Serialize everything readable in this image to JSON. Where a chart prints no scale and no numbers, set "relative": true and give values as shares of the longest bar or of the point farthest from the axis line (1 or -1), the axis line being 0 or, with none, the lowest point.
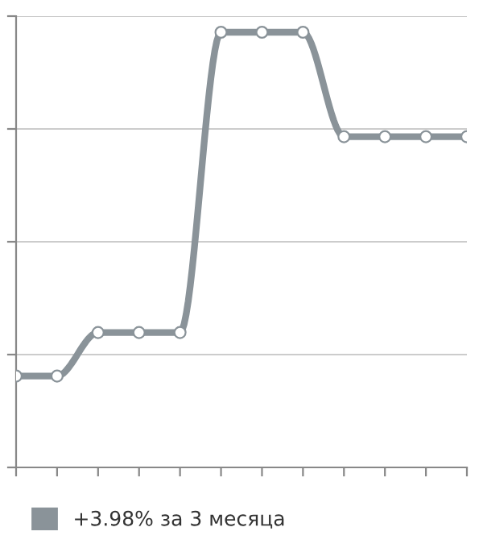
{
  "chart_data": {
    "type": "line",
    "relative": true,
    "categories": [
      null,
      null,
      null,
      null,
      null,
      null,
      null,
      null,
      null,
      null,
      null,
      null
    ],
    "series": [
      {
        "name": "+3.98% за 3 месяца",
        "color": "#8a9399",
        "values": [
          0.21,
          0.21,
          0.31,
          0.31,
          0.31,
          1,
          1,
          1,
          0.76,
          0.76,
          0.76,
          0.76
        ]
      }
    ],
    "grid": "y",
    "legend": "bottom left",
    "marker": "circle",
    "line_style": "solid"
  }
}
